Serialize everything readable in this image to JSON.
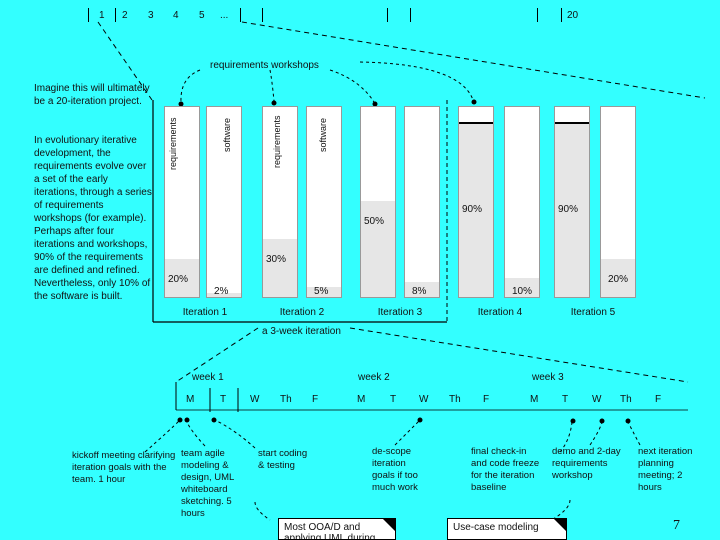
{
  "timeline_numbers": [
    "1",
    "2",
    "3",
    "4",
    "5",
    "...",
    "20"
  ],
  "requirements_workshops_label": "requirements workshops",
  "intro_title": "Imagine this will ultimately be a 20-iteration project.",
  "intro_body": "In evolutionary iterative development, the requirements evolve over a set of the early iterations, through a series of requirements workshops (for example). Perhaps after four iterations and workshops, 90% of the requirements are defined and refined. Nevertheless, only 10% of the software is built.",
  "column_labels": {
    "req1": "requirements",
    "soft1": "software",
    "req2": "requirements",
    "soft2": "software"
  },
  "columns": [
    {
      "kind": "requirements",
      "fill": 0.2,
      "label": "20%"
    },
    {
      "kind": "software",
      "fill": 0.02,
      "label": "2%"
    },
    {
      "kind": "requirements",
      "fill": 0.3,
      "label": "30%"
    },
    {
      "kind": "software",
      "fill": 0.05,
      "label": "5%"
    },
    {
      "kind": "requirements",
      "fill": 0.5,
      "label": "50%"
    },
    {
      "kind": "software",
      "fill": 0.08,
      "label": "8%"
    },
    {
      "kind": "requirements",
      "fill": 0.9,
      "label": "90%"
    },
    {
      "kind": "software",
      "fill": 0.1,
      "label": "10%"
    },
    {
      "kind": "requirements",
      "fill": 0.9,
      "label": "90%"
    },
    {
      "kind": "software",
      "fill": 0.2,
      "label": "20%"
    }
  ],
  "iterations": [
    "Iteration 1",
    "Iteration 2",
    "Iteration 3",
    "Iteration 4",
    "Iteration 5"
  ],
  "three_week_label": "a 3-week iteration",
  "weeks": [
    "week 1",
    "week 2",
    "week 3"
  ],
  "days": [
    "M",
    "T",
    "W",
    "Th",
    "F",
    "M",
    "T",
    "W",
    "Th",
    "F",
    "M",
    "T",
    "W",
    "Th",
    "F"
  ],
  "notes": {
    "kickoff": "kickoff meeting clarifying iteration goals with the team. 1 hour",
    "agile": "team agile modeling & design, UML whiteboard sketching. 5 hours",
    "start": "start coding & testing",
    "descope": "de-scope iteration goals if too much work",
    "final": "final check-in and code freeze for the iteration baseline",
    "demo": "demo and 2-day requirements workshop",
    "next": "next iteration planning meeting; 2 hours"
  },
  "book_box_1": "Most OOA/D and applying UML during",
  "book_box_2": "Use-case modeling",
  "page_number": "7"
}
